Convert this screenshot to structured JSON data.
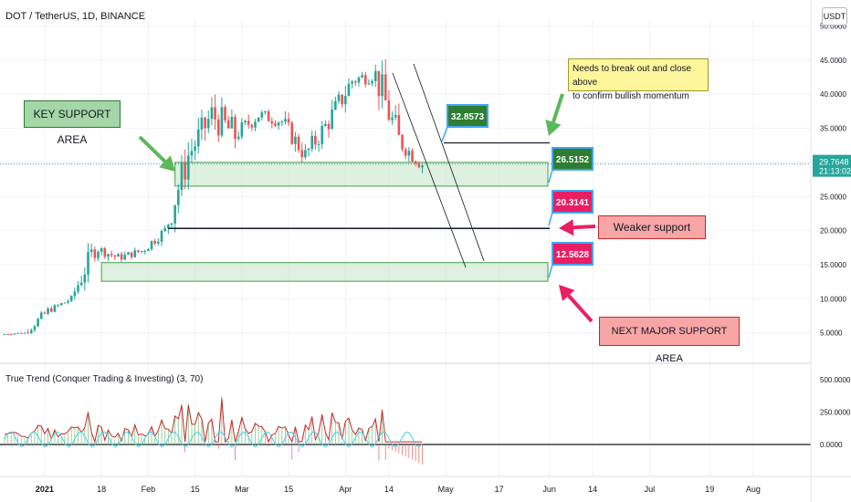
{
  "header": {
    "symbol": "DOT / TetherUS, 1D, BINANCE",
    "currency_button": "USDT"
  },
  "indicator": {
    "label": "True Trend (Conquer Trading & Investing) (3, 70)"
  },
  "price_axis": {
    "ticks": [
      "50.0000",
      "45.0000",
      "40.0000",
      "35.0000",
      "30.0000",
      "25.0000",
      "20.0000",
      "15.0000",
      "10.0000",
      "5.0000"
    ],
    "current_price": "29.7648",
    "countdown": "21:13:02",
    "indicator_ticks": [
      "500.0000",
      "250.0000",
      "0.0000"
    ]
  },
  "time_axis": {
    "ticks": [
      "2021",
      "18",
      "Feb",
      "15",
      "Mar",
      "15",
      "Apr",
      "14",
      "May",
      "17",
      "Jun",
      "14",
      "Jul",
      "19",
      "Aug"
    ]
  },
  "annotations": {
    "key_support": "KEY SUPPORT AREA",
    "breakout_note_line1": "Needs to break out and close above",
    "breakout_note_line2": "to confirm bullish momentum",
    "weaker_support": "Weaker support",
    "next_support": "NEXT MAJOR SUPPORT AREA",
    "level_32": "32.8573",
    "level_26": "26.5152",
    "level_20": "20.3141",
    "level_12": "12.5628"
  },
  "colors": {
    "up": "#26a69a",
    "down": "#ef5350",
    "zone_fill": "#c8e6c9",
    "zone_border": "#43a047",
    "label_green": "#2e7d32",
    "label_red": "#e91e63",
    "arrow_green": "#5cb85c",
    "arrow_pink": "#e91e63"
  },
  "chart_data": {
    "type": "candlestick",
    "title": "DOT / TetherUS, 1D, BINANCE",
    "x_start": "2020-12-20",
    "x": [
      "2020-12-20",
      "2020-12-27",
      "2021-01-03",
      "2021-01-10",
      "2021-01-17",
      "2021-01-24",
      "2021-01-31",
      "2021-02-07",
      "2021-02-14",
      "2021-02-21",
      "2021-02-28",
      "2021-03-07",
      "2021-03-14",
      "2021-03-21",
      "2021-03-28",
      "2021-04-04",
      "2021-04-11",
      "2021-04-18"
    ],
    "open": [
      4.8,
      5.0,
      8.2,
      10.0,
      17.5,
      16.0,
      17.0,
      20.0,
      31.0,
      37.0,
      34.0,
      37.0,
      36.0,
      31.0,
      36.0,
      42.0,
      43.0,
      33.0
    ],
    "high": [
      5.2,
      8.8,
      10.5,
      19.0,
      19.0,
      18.5,
      21.0,
      34.0,
      42.5,
      40.0,
      39.0,
      40.0,
      38.0,
      37.0,
      45.0,
      46.5,
      48.0,
      35.0
    ],
    "low": [
      4.6,
      4.9,
      8.0,
      9.8,
      15.0,
      15.2,
      16.5,
      19.5,
      30.0,
      26.0,
      32.0,
      34.5,
      30.0,
      28.0,
      35.0,
      40.0,
      32.0,
      28.0
    ],
    "close": [
      5.0,
      8.2,
      10.0,
      17.5,
      16.0,
      17.0,
      20.0,
      31.0,
      37.0,
      34.0,
      37.0,
      36.0,
      31.0,
      36.0,
      42.0,
      43.0,
      33.0,
      29.76
    ],
    "ylim": [
      0,
      51.5
    ],
    "support_zones": [
      [
        26.5152,
        30.0
      ],
      [
        12.5628,
        15.3
      ]
    ],
    "levels": [
      32.8573,
      20.3141
    ],
    "indicator": {
      "name": "True Trend",
      "params": [
        3,
        70
      ],
      "ylim": [
        -200,
        600
      ],
      "zero": 0
    }
  }
}
